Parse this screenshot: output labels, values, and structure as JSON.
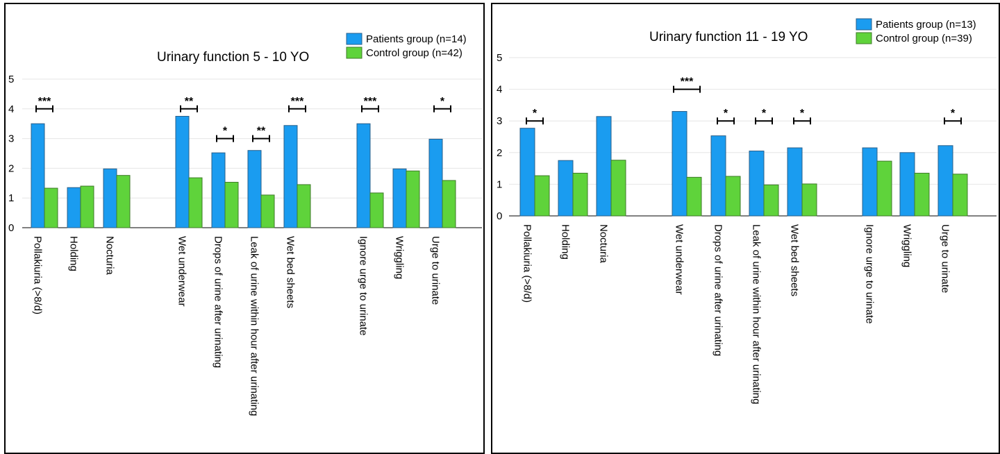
{
  "colors": {
    "patients": "#1a9cf0",
    "control": "#5fd33b",
    "patients_stroke": "#2a5f8a",
    "control_stroke": "#3f7a2a"
  },
  "chart_data": [
    {
      "type": "bar",
      "title": "Urinary function 5 - 10 YO",
      "legend_placement": "top-right",
      "ylim": [
        0,
        5
      ],
      "yticks": [
        "0",
        "1",
        "2",
        "3",
        "4",
        "5"
      ],
      "grid": true,
      "categories": [
        "Pollakiuria (>8/d)",
        "Holding",
        "Nocturia",
        "",
        "Wet underwear",
        "Drops of urine after urinating",
        "Leak of urine within hour after urinating",
        "Wet bed sheets",
        "",
        "Ignore urge to urinate",
        "Wriggling",
        "Urge to urinate"
      ],
      "series": [
        {
          "name": "Patients group (n=14)",
          "values": [
            3.5,
            1.35,
            1.98,
            null,
            3.75,
            2.52,
            2.6,
            3.44,
            null,
            3.5,
            1.98,
            2.98
          ]
        },
        {
          "name": "Control group (n=42)",
          "values": [
            1.33,
            1.4,
            1.76,
            null,
            1.68,
            1.53,
            1.1,
            1.45,
            null,
            1.17,
            1.91,
            1.59
          ]
        }
      ],
      "significance": [
        {
          "category": 0,
          "label": "***",
          "level": 4.0
        },
        {
          "category": 4,
          "label": "**",
          "level": 4.0
        },
        {
          "category": 5,
          "label": "*",
          "level": 3.0
        },
        {
          "category": 6,
          "label": "**",
          "level": 3.0
        },
        {
          "category": 7,
          "label": "***",
          "level": 4.0
        },
        {
          "category": 9,
          "label": "***",
          "level": 4.0
        },
        {
          "category": 11,
          "label": "*",
          "level": 4.0
        }
      ]
    },
    {
      "type": "bar",
      "title": "Urinary function 11 - 19 YO",
      "legend_placement": "top-right",
      "ylim": [
        0,
        5
      ],
      "yticks": [
        "0",
        "1",
        "2",
        "3",
        "4",
        "5"
      ],
      "grid": true,
      "categories": [
        "Pollakiuria (>8/d)",
        "Holding",
        "Nocturia",
        "",
        "Wet underwear",
        "Drops of urine after urinating",
        "Leak of urine within hour after urinating",
        "Wet bed sheets",
        "",
        "Ignore urge to urinate",
        "Wriggling",
        "Urge to urinate"
      ],
      "series": [
        {
          "name": "Patients group (n=13)",
          "values": [
            2.77,
            1.75,
            3.14,
            null,
            3.3,
            2.53,
            2.05,
            2.15,
            null,
            2.15,
            2.0,
            2.22
          ]
        },
        {
          "name": "Control group (n=39)",
          "values": [
            1.27,
            1.35,
            1.76,
            null,
            1.22,
            1.25,
            0.98,
            1.01,
            null,
            1.73,
            1.35,
            1.32
          ]
        }
      ],
      "significance": [
        {
          "category": 0,
          "label": "*",
          "level": 3.0
        },
        {
          "category": 4,
          "label": "***",
          "level": 4.0
        },
        {
          "category": 5,
          "label": "*",
          "level": 3.0
        },
        {
          "category": 6,
          "label": "*",
          "level": 3.0
        },
        {
          "category": 7,
          "label": "*",
          "level": 3.0
        },
        {
          "category": 11,
          "label": "*",
          "level": 3.0
        }
      ]
    }
  ]
}
